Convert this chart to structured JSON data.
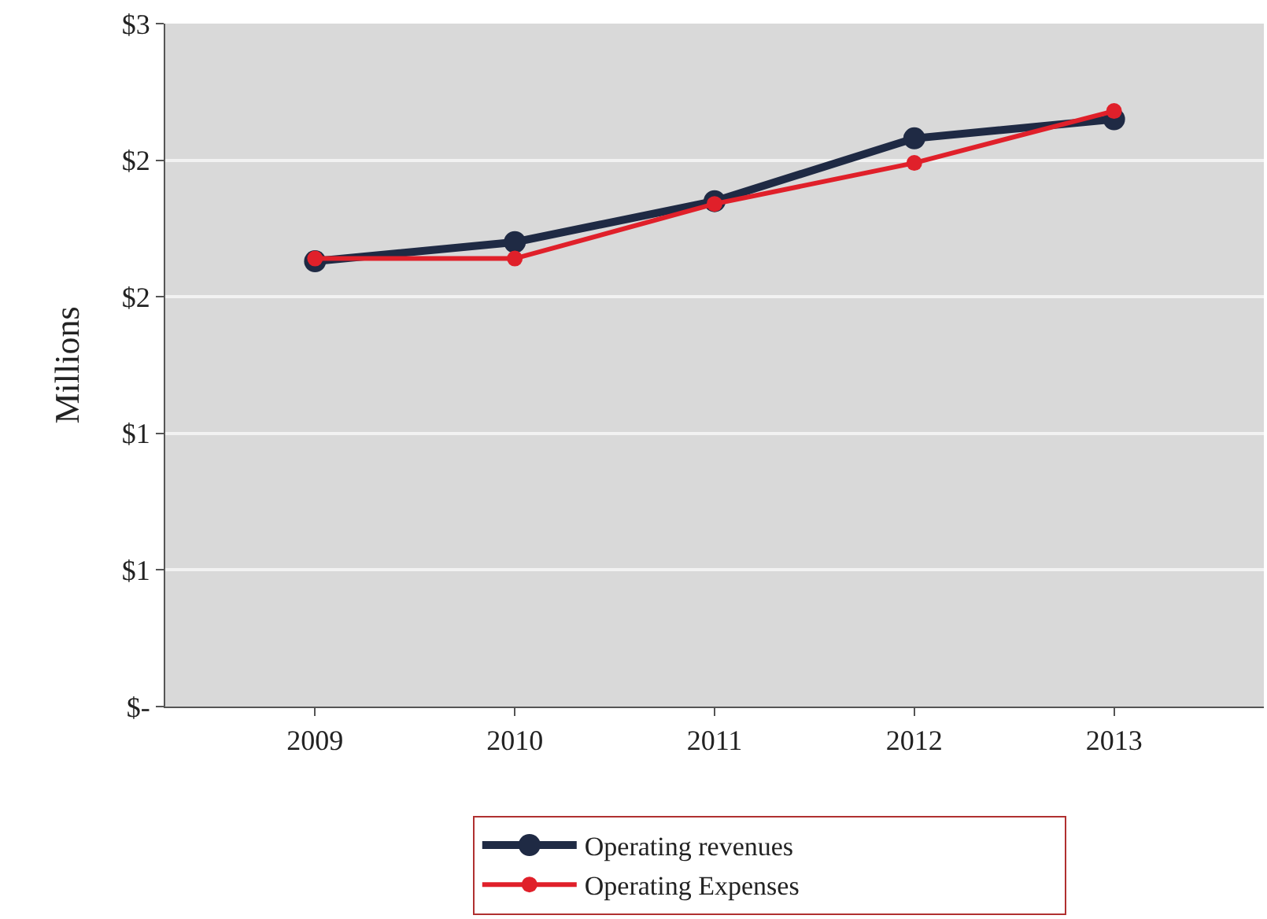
{
  "chart_data": {
    "type": "line",
    "ylabel": "Millions",
    "categories": [
      "2009",
      "2010",
      "2011",
      "2012",
      "2013"
    ],
    "series": [
      {
        "name": "Operating revenues",
        "color": "#1f2a44",
        "values": [
          1.63,
          1.7,
          1.85,
          2.08,
          2.15
        ]
      },
      {
        "name": "Operating Expenses",
        "color": "#e0202a",
        "values": [
          1.64,
          1.64,
          1.84,
          1.99,
          2.18
        ]
      }
    ],
    "ylim": [
      0,
      2.5
    ],
    "yticks": [
      {
        "value": 0,
        "label": "$-"
      },
      {
        "value": 0.5,
        "label": "$1"
      },
      {
        "value": 1,
        "label": "$1"
      },
      {
        "value": 1.5,
        "label": "$2"
      },
      {
        "value": 2,
        "label": "$2"
      },
      {
        "value": 2.5,
        "label": "$3"
      }
    ],
    "grid": "y",
    "legend": "bottom",
    "marker": "circle",
    "line_style": "solid"
  }
}
